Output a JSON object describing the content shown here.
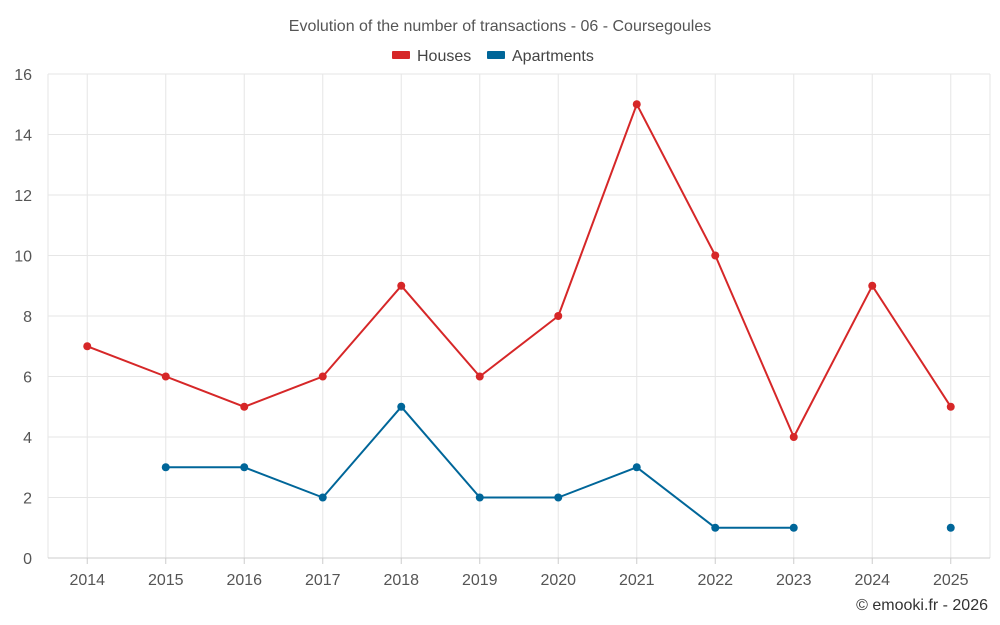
{
  "chart_data": {
    "type": "line",
    "title": "Evolution of the number of transactions - 06 - Coursegoules",
    "categories": [
      "2014",
      "2015",
      "2016",
      "2017",
      "2018",
      "2019",
      "2020",
      "2021",
      "2022",
      "2023",
      "2024",
      "2025"
    ],
    "ylim": [
      0,
      16
    ],
    "yticks": [
      0,
      2,
      4,
      6,
      8,
      10,
      12,
      14,
      16
    ],
    "legend_position": "top-center",
    "grid": true,
    "series": [
      {
        "name": "Houses",
        "color": "#d62728",
        "values": [
          7,
          6,
          5,
          6,
          9,
          6,
          8,
          15,
          10,
          4,
          9,
          5
        ]
      },
      {
        "name": "Apartments",
        "color": "#006699",
        "values": [
          null,
          3,
          3,
          2,
          5,
          2,
          2,
          3,
          1,
          1,
          null,
          1
        ]
      }
    ],
    "credit": "© emooki.fr - 2026"
  }
}
